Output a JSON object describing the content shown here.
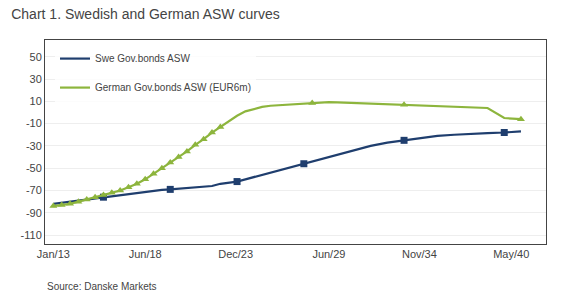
{
  "chart_data": {
    "type": "line",
    "title": "Chart 1. Swedish and German ASW curves",
    "annotations": [
      "Source: Danske Markets"
    ],
    "series": [
      {
        "name": "Swe Gov.bonds ASW",
        "color": "#1f3e6e",
        "marker": "square",
        "x": [
          2013.0,
          2013.5,
          2014.0,
          2014.5,
          2015.0,
          2015.5,
          2016.0,
          2016.5,
          2017.0,
          2017.5,
          2018.0,
          2018.5,
          2019.0,
          2019.5,
          2020.0,
          2020.5,
          2021.0,
          2021.5,
          2022.0,
          2022.5,
          2023.0,
          2023.5,
          2024.0,
          2024.5,
          2025.0,
          2025.5,
          2026.0,
          2026.5,
          2027.0,
          2027.5,
          2028.0,
          2028.5,
          2029.0,
          2030.0,
          2031.0,
          2032.0,
          2033.0,
          2034.0,
          2035.0,
          2036.0,
          2037.0,
          2038.0,
          2039.0,
          2040.0,
          2041.0
        ],
        "values": [
          -82,
          -81,
          -80,
          -79,
          -78,
          -77,
          -76,
          -75,
          -74,
          -73,
          -72,
          -71,
          -70,
          -69.5,
          -69,
          -68.5,
          -68,
          -67.5,
          -67,
          -66,
          -64,
          -63,
          -62,
          -60,
          -58,
          -56,
          -54,
          -52,
          -50,
          -48,
          -46,
          -44,
          -42,
          -38,
          -34,
          -30,
          -27,
          -25,
          -23,
          -21,
          -20,
          -19,
          -18.5,
          -18,
          -17
        ],
        "marker_x": [
          2016.0,
          2020.0,
          2024.0,
          2028.0,
          2034.0,
          2040.0
        ]
      },
      {
        "name": "German Gov.bonds ASW (EUR6m)",
        "color": "#8db53d",
        "marker": "triangle-up",
        "x": [
          2013.0,
          2013.5,
          2014.0,
          2014.5,
          2015.0,
          2015.5,
          2016.0,
          2016.5,
          2017.0,
          2017.5,
          2018.0,
          2018.5,
          2019.0,
          2019.5,
          2020.0,
          2020.5,
          2021.0,
          2021.5,
          2022.0,
          2022.5,
          2023.0,
          2023.5,
          2024.0,
          2024.5,
          2025.0,
          2025.5,
          2026.0,
          2026.5,
          2027.0,
          2027.5,
          2028.0,
          2028.5,
          2029.0,
          2029.5,
          2030.0,
          2031.0,
          2032.0,
          2033.0,
          2034.0,
          2035.0,
          2036.0,
          2037.0,
          2038.0,
          2039.0,
          2040.0,
          2041.0
        ],
        "values": [
          -84,
          -83,
          -82,
          -80,
          -78,
          -76,
          -74,
          -72,
          -70,
          -67,
          -64,
          -60,
          -55,
          -50,
          -45,
          -40,
          -35,
          -29,
          -24,
          -18,
          -13,
          -8,
          -3,
          1,
          3,
          5,
          6,
          6.5,
          7,
          7.5,
          8,
          8.5,
          9,
          9.2,
          9,
          8.5,
          8,
          7.5,
          7,
          6.5,
          6,
          5.5,
          5,
          4,
          -5,
          -6
        ],
        "marker_x": [
          2013.0,
          2013.5,
          2014.0,
          2014.5,
          2015.0,
          2015.5,
          2016.0,
          2016.5,
          2017.0,
          2017.5,
          2018.0,
          2018.5,
          2019.0,
          2019.5,
          2020.0,
          2020.5,
          2021.0,
          2021.5,
          2022.0,
          2022.5,
          2023.0,
          2028.5,
          2034.0,
          2041.0
        ]
      }
    ],
    "xlim": [
      2012.5,
      2042.5
    ],
    "xticks": [
      {
        "value": 2013.0,
        "label": "Jan/13"
      },
      {
        "value": 2018.5,
        "label": "Jun/18"
      },
      {
        "value": 2023.917,
        "label": "Dec/23"
      },
      {
        "value": 2029.5,
        "label": "Jun/29"
      },
      {
        "value": 2034.917,
        "label": "Nov/34"
      },
      {
        "value": 2040.417,
        "label": "May/40"
      }
    ],
    "ylim": [
      -118,
      65
    ],
    "yticks": [
      50,
      30,
      10,
      -10,
      -30,
      -50,
      -70,
      -90,
      -110
    ],
    "grid": "y",
    "legend": "upper left"
  }
}
